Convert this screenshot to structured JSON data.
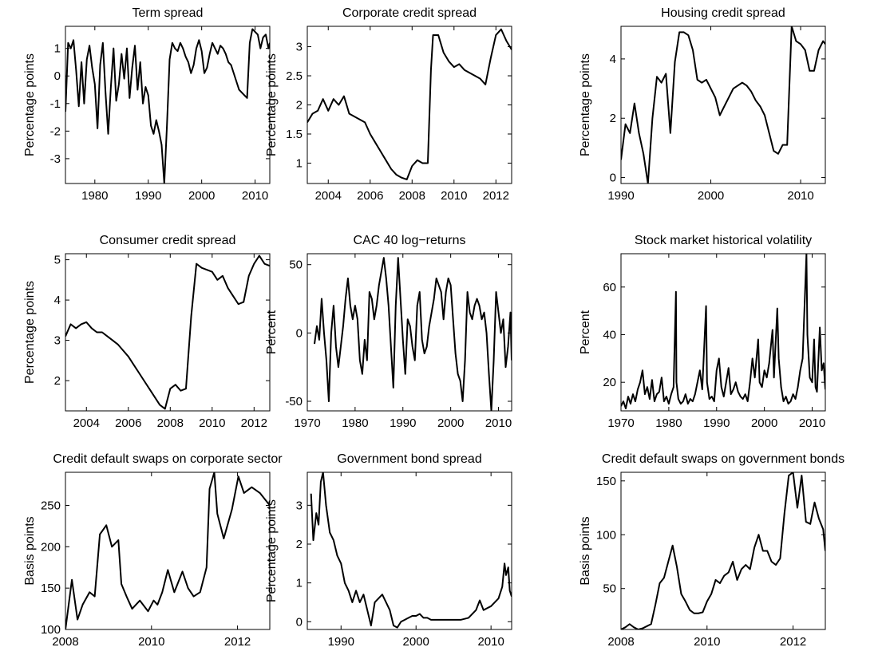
{
  "chart_data": [
    {
      "type": "line",
      "title": "Term spread",
      "ylabel": "Percentage points",
      "color": "#000000",
      "xlim": [
        1974.5,
        2012.75
      ],
      "xticks": [
        1980,
        1990,
        2000,
        2010
      ],
      "ylim": [
        -3.9,
        1.8
      ],
      "yticks": [
        -3,
        -2,
        -1,
        0,
        1
      ],
      "x": [
        1974.5,
        1975,
        1975.5,
        1976,
        1976.5,
        1977,
        1977.5,
        1978,
        1978.5,
        1979,
        1979.5,
        1980,
        1980.5,
        1981,
        1981.5,
        1982,
        1982.5,
        1983,
        1983.5,
        1984,
        1984.5,
        1985,
        1985.5,
        1986,
        1986.5,
        1987,
        1987.5,
        1988,
        1988.5,
        1989,
        1989.5,
        1990,
        1990.5,
        1991,
        1991.5,
        1992,
        1992.5,
        1993,
        1993.5,
        1994,
        1994.5,
        1995,
        1995.5,
        1996,
        1996.5,
        1997,
        1997.5,
        1998,
        1998.5,
        1999,
        1999.5,
        2000,
        2000.5,
        2001,
        2001.5,
        2002,
        2002.5,
        2003,
        2003.5,
        2004,
        2004.5,
        2005,
        2005.5,
        2006,
        2006.5,
        2007,
        2007.5,
        2008,
        2008.5,
        2009,
        2009.5,
        2010,
        2010.5,
        2011,
        2011.5,
        2012,
        2012.5,
        2012.75
      ],
      "values": [
        -1.3,
        1.2,
        1.0,
        1.3,
        0.2,
        -1.1,
        0.5,
        -1.0,
        0.6,
        1.1,
        0.3,
        -0.3,
        -1.9,
        0.4,
        1.2,
        -0.6,
        -2.1,
        -0.4,
        1.0,
        -0.9,
        -0.3,
        0.8,
        -0.1,
        1.0,
        -0.8,
        0.3,
        1.1,
        -0.5,
        0.5,
        -1.0,
        -0.4,
        -0.7,
        -1.8,
        -2.1,
        -1.6,
        -2.0,
        -2.5,
        -3.9,
        -1.8,
        0.6,
        1.2,
        1.0,
        0.9,
        1.2,
        1.0,
        0.7,
        0.5,
        0.1,
        0.4,
        1.0,
        1.3,
        0.9,
        0.1,
        0.3,
        0.8,
        1.2,
        1.0,
        0.8,
        1.1,
        1.0,
        0.8,
        0.5,
        0.4,
        0.1,
        -0.2,
        -0.5,
        -0.6,
        -0.7,
        -0.8,
        1.2,
        1.7,
        1.6,
        1.5,
        1.0,
        1.4,
        1.5,
        1.0,
        1.2
      ]
    },
    {
      "type": "line",
      "title": "Corporate credit spread",
      "ylabel": "Percentage points",
      "color": "#000000",
      "xlim": [
        2003,
        2012.75
      ],
      "xticks": [
        2004,
        2006,
        2008,
        2010,
        2012
      ],
      "ylim": [
        0.65,
        3.35
      ],
      "yticks": [
        1,
        1.5,
        2,
        2.5,
        3
      ],
      "x": [
        2003,
        2003.25,
        2003.5,
        2003.75,
        2004,
        2004.25,
        2004.5,
        2004.75,
        2005,
        2005.25,
        2005.5,
        2005.75,
        2006,
        2006.25,
        2006.5,
        2006.75,
        2007,
        2007.25,
        2007.5,
        2007.75,
        2008,
        2008.25,
        2008.5,
        2008.75,
        2008.9,
        2009,
        2009.25,
        2009.5,
        2009.75,
        2010,
        2010.25,
        2010.5,
        2010.75,
        2011,
        2011.25,
        2011.5,
        2011.75,
        2012,
        2012.25,
        2012.5,
        2012.75
      ],
      "values": [
        1.7,
        1.85,
        1.9,
        2.1,
        1.9,
        2.1,
        2.0,
        2.15,
        1.85,
        1.8,
        1.75,
        1.7,
        1.5,
        1.35,
        1.2,
        1.05,
        0.9,
        0.8,
        0.75,
        0.72,
        0.95,
        1.05,
        1.0,
        1.0,
        2.6,
        3.2,
        3.2,
        2.9,
        2.75,
        2.65,
        2.7,
        2.6,
        2.55,
        2.5,
        2.45,
        2.35,
        2.8,
        3.2,
        3.3,
        3.1,
        2.95
      ]
    },
    {
      "type": "line",
      "title": "Housing credit spread",
      "ylabel": "Percentage points",
      "color": "#000000",
      "xlim": [
        1990,
        2012.75
      ],
      "xticks": [
        1990,
        2000,
        2010
      ],
      "ylim": [
        -0.2,
        5.1
      ],
      "yticks": [
        0,
        2,
        4
      ],
      "x": [
        1990,
        1990.5,
        1991,
        1991.5,
        1992,
        1992.5,
        1993,
        1993.5,
        1994,
        1994.5,
        1995,
        1995.5,
        1996,
        1996.5,
        1997,
        1997.5,
        1998,
        1998.5,
        1999,
        1999.5,
        2000,
        2000.5,
        2001,
        2001.5,
        2002,
        2002.5,
        2003,
        2003.5,
        2004,
        2004.5,
        2005,
        2005.5,
        2006,
        2006.5,
        2007,
        2007.5,
        2008,
        2008.5,
        2009,
        2009.5,
        2010,
        2010.5,
        2011,
        2011.5,
        2012,
        2012.5,
        2012.75
      ],
      "values": [
        0.6,
        1.8,
        1.5,
        2.5,
        1.5,
        0.8,
        -0.2,
        2.0,
        3.4,
        3.2,
        3.5,
        1.5,
        3.9,
        4.9,
        4.9,
        4.8,
        4.3,
        3.3,
        3.2,
        3.3,
        3.0,
        2.7,
        2.1,
        2.4,
        2.7,
        3.0,
        3.1,
        3.2,
        3.1,
        2.9,
        2.6,
        2.4,
        2.1,
        1.5,
        0.9,
        0.8,
        1.1,
        1.1,
        5.1,
        4.6,
        4.5,
        4.3,
        3.6,
        3.6,
        4.3,
        4.6,
        4.5
      ]
    },
    {
      "type": "line",
      "title": "Consumer credit spread",
      "ylabel": "Percentage points",
      "color": "#000000",
      "xlim": [
        2003,
        2012.75
      ],
      "xticks": [
        2004,
        2006,
        2008,
        2010,
        2012
      ],
      "ylim": [
        1.25,
        5.15
      ],
      "yticks": [
        2,
        3,
        4,
        5
      ],
      "x": [
        2003,
        2003.25,
        2003.5,
        2003.75,
        2004,
        2004.25,
        2004.5,
        2004.75,
        2005,
        2005.25,
        2005.5,
        2005.75,
        2006,
        2006.25,
        2006.5,
        2006.75,
        2007,
        2007.25,
        2007.5,
        2007.75,
        2008,
        2008.25,
        2008.5,
        2008.75,
        2009,
        2009.25,
        2009.5,
        2009.75,
        2010,
        2010.25,
        2010.5,
        2010.75,
        2011,
        2011.25,
        2011.5,
        2011.75,
        2012,
        2012.25,
        2012.5,
        2012.75
      ],
      "values": [
        3.1,
        3.4,
        3.3,
        3.4,
        3.45,
        3.3,
        3.2,
        3.2,
        3.1,
        3.0,
        2.9,
        2.75,
        2.6,
        2.4,
        2.2,
        2.0,
        1.8,
        1.6,
        1.4,
        1.3,
        1.8,
        1.9,
        1.75,
        1.8,
        3.6,
        4.9,
        4.8,
        4.75,
        4.7,
        4.5,
        4.6,
        4.3,
        4.1,
        3.9,
        3.95,
        4.6,
        4.9,
        5.1,
        4.9,
        4.85
      ]
    },
    {
      "type": "line",
      "title": "CAC 40 log−returns",
      "ylabel": "Percent",
      "color": "#000000",
      "xlim": [
        1970,
        2012.75
      ],
      "xticks": [
        1970,
        1980,
        1990,
        2000,
        2010
      ],
      "ylim": [
        -57,
        58
      ],
      "yticks": [
        -50,
        0,
        50
      ],
      "x": [
        1971.5,
        1972,
        1972.5,
        1973,
        1973.5,
        1974,
        1974.5,
        1975,
        1975.5,
        1976,
        1976.5,
        1977,
        1977.5,
        1978,
        1978.5,
        1979,
        1979.5,
        1980,
        1980.5,
        1981,
        1981.5,
        1982,
        1982.5,
        1983,
        1983.5,
        1984,
        1984.5,
        1985,
        1985.5,
        1986,
        1986.5,
        1987,
        1987.5,
        1988,
        1988.5,
        1989,
        1989.5,
        1990,
        1990.5,
        1991,
        1991.5,
        1992,
        1992.5,
        1993,
        1993.5,
        1994,
        1994.5,
        1995,
        1995.5,
        1996,
        1996.5,
        1997,
        1997.5,
        1998,
        1998.5,
        1999,
        1999.5,
        2000,
        2000.5,
        2001,
        2001.5,
        2002,
        2002.5,
        2003,
        2003.5,
        2004,
        2004.5,
        2005,
        2005.5,
        2006,
        2006.5,
        2007,
        2007.5,
        2008,
        2008.5,
        2009,
        2009.5,
        2010,
        2010.5,
        2011,
        2011.5,
        2012,
        2012.5,
        2012.75
      ],
      "values": [
        -8,
        5,
        -5,
        25,
        0,
        -20,
        -50,
        0,
        20,
        -10,
        -25,
        -10,
        5,
        25,
        40,
        20,
        10,
        20,
        10,
        -20,
        -30,
        -5,
        -20,
        30,
        25,
        10,
        20,
        35,
        45,
        55,
        40,
        20,
        -10,
        -40,
        20,
        55,
        25,
        -5,
        -30,
        10,
        5,
        -10,
        -20,
        20,
        30,
        -5,
        -15,
        -10,
        5,
        15,
        25,
        40,
        35,
        30,
        10,
        30,
        40,
        35,
        10,
        -15,
        -30,
        -35,
        -50,
        -20,
        30,
        15,
        10,
        20,
        25,
        20,
        10,
        15,
        0,
        -30,
        -57,
        -20,
        30,
        15,
        0,
        10,
        -25,
        -10,
        15,
        -20
      ]
    },
    {
      "type": "line",
      "title": "Stock market historical volatility",
      "ylabel": "Percent",
      "color": "#000000",
      "xlim": [
        1970,
        2012.75
      ],
      "xticks": [
        1970,
        1980,
        1990,
        2000,
        2010
      ],
      "ylim": [
        8,
        74
      ],
      "yticks": [
        20,
        40,
        60
      ],
      "x": [
        1970,
        1970.5,
        1971,
        1971.5,
        1972,
        1972.5,
        1973,
        1973.5,
        1974,
        1974.5,
        1975,
        1975.5,
        1976,
        1976.5,
        1977,
        1977.5,
        1978,
        1978.5,
        1979,
        1979.5,
        1980,
        1980.5,
        1981,
        1981.5,
        1981.6,
        1982,
        1982.5,
        1983,
        1983.5,
        1984,
        1984.5,
        1985,
        1985.5,
        1986,
        1986.5,
        1987,
        1987.8,
        1988,
        1988.5,
        1989,
        1989.5,
        1990,
        1990.5,
        1991,
        1991.5,
        1992,
        1992.5,
        1993,
        1993.5,
        1994,
        1994.5,
        1995,
        1995.5,
        1996,
        1996.5,
        1997,
        1997.5,
        1998,
        1998.7,
        1999,
        1999.5,
        2000,
        2000.5,
        2001,
        2001.7,
        2002,
        2002.7,
        2003,
        2003.5,
        2004,
        2004.5,
        2005,
        2005.5,
        2006,
        2006.5,
        2007,
        2007.5,
        2008,
        2008.8,
        2009,
        2009.5,
        2010,
        2010.4,
        2010.7,
        2011,
        2011.6,
        2012,
        2012.4,
        2012.75
      ],
      "values": [
        10,
        12,
        9,
        14,
        11,
        15,
        12,
        17,
        20,
        25,
        15,
        18,
        13,
        21,
        12,
        15,
        16,
        22,
        12,
        14,
        11,
        15,
        18,
        58,
        20,
        13,
        11,
        12,
        15,
        11,
        13,
        12,
        15,
        20,
        25,
        17,
        52,
        20,
        13,
        14,
        12,
        25,
        30,
        18,
        14,
        20,
        26,
        15,
        17,
        20,
        16,
        14,
        13,
        15,
        12,
        20,
        30,
        22,
        38,
        20,
        18,
        25,
        22,
        28,
        42,
        22,
        51,
        30,
        18,
        12,
        14,
        11,
        12,
        15,
        13,
        18,
        25,
        30,
        74,
        40,
        22,
        20,
        38,
        18,
        16,
        43,
        25,
        28,
        17
      ]
    },
    {
      "type": "line",
      "title": "Credit default swaps on corporate sector",
      "ylabel": "Basis points",
      "color": "#000000",
      "xlim": [
        2008,
        2012.75
      ],
      "xticks": [
        2008,
        2010,
        2012
      ],
      "ylim": [
        100,
        290
      ],
      "yticks": [
        100,
        150,
        200,
        250
      ],
      "x": [
        2008,
        2008.15,
        2008.28,
        2008.4,
        2008.56,
        2008.68,
        2008.8,
        2008.95,
        2009.08,
        2009.23,
        2009.3,
        2009.42,
        2009.55,
        2009.73,
        2009.92,
        2010.05,
        2010.14,
        2010.25,
        2010.38,
        2010.53,
        2010.72,
        2010.85,
        2010.98,
        2011.13,
        2011.28,
        2011.35,
        2011.46,
        2011.53,
        2011.68,
        2011.87,
        2012.02,
        2012.15,
        2012.33,
        2012.52,
        2012.75
      ],
      "values": [
        100,
        160,
        112,
        130,
        145,
        140,
        215,
        226,
        200,
        208,
        155,
        140,
        125,
        135,
        122,
        135,
        130,
        145,
        172,
        145,
        170,
        150,
        140,
        145,
        175,
        270,
        290,
        240,
        210,
        245,
        285,
        265,
        272,
        265,
        250
      ]
    },
    {
      "type": "line",
      "title": "Government bond spread",
      "ylabel": "Percentage points",
      "color": "#000000",
      "xlim": [
        1985.5,
        2012.75
      ],
      "xticks": [
        1990,
        2000,
        2010
      ],
      "ylim": [
        -0.2,
        3.85
      ],
      "yticks": [
        0,
        1,
        2,
        3
      ],
      "x": [
        1986,
        1986.3,
        1986.7,
        1987,
        1987.3,
        1987.6,
        1988,
        1988.5,
        1989,
        1989.5,
        1990,
        1990.5,
        1991,
        1991.5,
        1992,
        1992.5,
        1993,
        1993.5,
        1994,
        1994.5,
        1995,
        1995.5,
        1996,
        1996.5,
        1997,
        1997.5,
        1998,
        1998.5,
        1999,
        1999.5,
        2000,
        2000.5,
        2001,
        2001.5,
        2002,
        2003,
        2004,
        2005,
        2006,
        2007,
        2007.5,
        2008,
        2008.5,
        2009,
        2009.5,
        2010,
        2010.5,
        2011,
        2011.5,
        2011.8,
        2012,
        2012.3,
        2012.5,
        2012.75
      ],
      "values": [
        3.3,
        2.1,
        2.8,
        2.5,
        3.6,
        3.85,
        3.0,
        2.3,
        2.1,
        1.7,
        1.5,
        1.0,
        0.8,
        0.5,
        0.8,
        0.5,
        0.7,
        0.3,
        -0.1,
        0.5,
        0.6,
        0.7,
        0.5,
        0.3,
        -0.1,
        -0.15,
        0.0,
        0.05,
        0.1,
        0.15,
        0.15,
        0.2,
        0.1,
        0.1,
        0.05,
        0.05,
        0.05,
        0.05,
        0.05,
        0.1,
        0.2,
        0.3,
        0.55,
        0.3,
        0.35,
        0.4,
        0.5,
        0.6,
        0.9,
        1.5,
        1.2,
        1.4,
        0.8,
        0.65
      ]
    },
    {
      "type": "line",
      "title": "Credit default swaps on government bonds",
      "ylabel": "Basis points",
      "color": "#000000",
      "xlim": [
        2008,
        2012.75
      ],
      "xticks": [
        2008,
        2010,
        2012
      ],
      "ylim": [
        12,
        158
      ],
      "yticks": [
        50,
        100,
        150
      ],
      "x": [
        2008,
        2008.1,
        2008.2,
        2008.3,
        2008.4,
        2008.5,
        2008.6,
        2008.7,
        2008.8,
        2008.9,
        2009,
        2009.1,
        2009.2,
        2009.3,
        2009.4,
        2009.5,
        2009.6,
        2009.7,
        2009.8,
        2009.9,
        2010,
        2010.1,
        2010.2,
        2010.3,
        2010.4,
        2010.5,
        2010.6,
        2010.7,
        2010.8,
        2010.9,
        2011,
        2011.1,
        2011.2,
        2011.3,
        2011.4,
        2011.5,
        2011.6,
        2011.7,
        2011.8,
        2011.9,
        2012,
        2012.1,
        2012.2,
        2012.3,
        2012.4,
        2012.5,
        2012.6,
        2012.7,
        2012.75
      ],
      "values": [
        12,
        14,
        17,
        14,
        12,
        13,
        15,
        17,
        35,
        55,
        60,
        75,
        90,
        70,
        45,
        38,
        30,
        27,
        27,
        28,
        38,
        45,
        58,
        55,
        62,
        65,
        75,
        58,
        68,
        72,
        68,
        88,
        100,
        85,
        85,
        75,
        72,
        78,
        120,
        155,
        158,
        125,
        155,
        112,
        110,
        130,
        115,
        105,
        85
      ]
    }
  ]
}
